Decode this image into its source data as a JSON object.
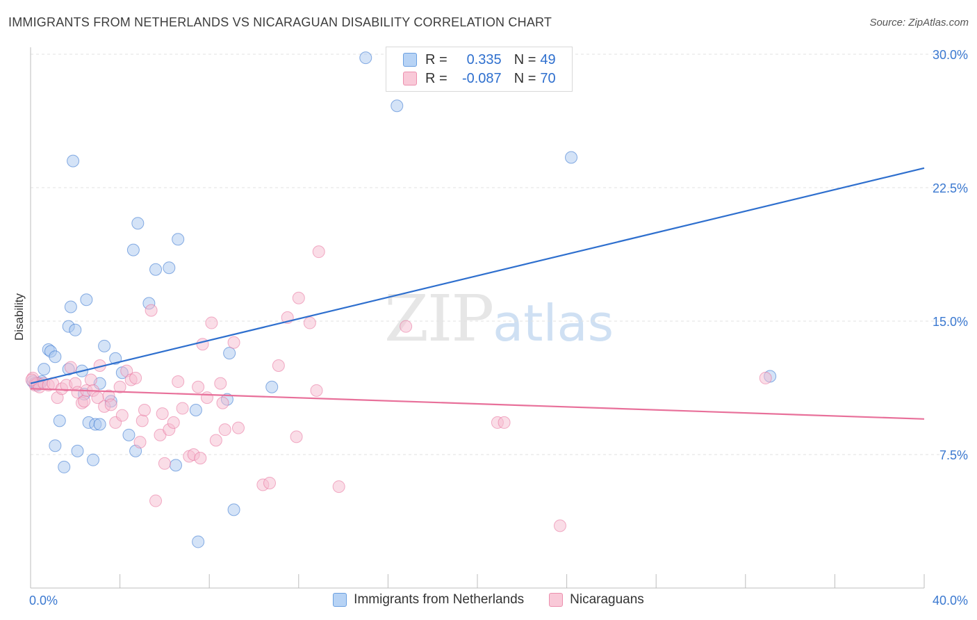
{
  "title": "IMMIGRANTS FROM NETHERLANDS VS NICARAGUAN DISABILITY CORRELATION CHART",
  "source": "Source: ZipAtlas.com",
  "watermark": {
    "zip": "ZIP",
    "atlas": "atlas"
  },
  "legend": {
    "series1": {
      "r_label": "R =",
      "r_value": "0.335",
      "n_label": "N =",
      "n_value": "49"
    },
    "series2": {
      "r_label": "R =",
      "r_value": "-0.087",
      "n_label": "N =",
      "n_value": "70"
    }
  },
  "chart_data": {
    "type": "scatter",
    "title": "IMMIGRANTS FROM NETHERLANDS VS NICARAGUAN DISABILITY CORRELATION CHART",
    "xlabel": "",
    "ylabel": "Disability",
    "xlim": [
      0,
      40
    ],
    "ylim": [
      0,
      31
    ],
    "x_tick_labels": [
      {
        "value": 0,
        "label": "0.0%"
      },
      {
        "value": 40,
        "label": "40.0%"
      }
    ],
    "y_tick_labels": [
      {
        "value": 7.5,
        "label": "7.5%"
      },
      {
        "value": 15,
        "label": "15.0%"
      },
      {
        "value": 22.5,
        "label": "22.5%"
      },
      {
        "value": 30,
        "label": "30.0%"
      }
    ],
    "grid": true,
    "colors": {
      "series1": "#2e6fce",
      "series1_fill": "#a9c8f0",
      "series2": "#e8709a",
      "series2_fill": "#f6bcd0",
      "axis_text": "#3a78d0"
    },
    "series": [
      {
        "name": "Immigrants from Netherlands",
        "trend": {
          "x0": 0,
          "y0": 11.5,
          "x1": 40,
          "y1": 23.6
        },
        "points": [
          [
            0.1,
            11.6
          ],
          [
            0.2,
            11.5
          ],
          [
            0.3,
            11.4
          ],
          [
            0.4,
            11.5
          ],
          [
            0.5,
            11.6
          ],
          [
            0.6,
            12.3
          ],
          [
            0.8,
            13.4
          ],
          [
            0.9,
            13.3
          ],
          [
            1.1,
            13.0
          ],
          [
            1.1,
            8.0
          ],
          [
            1.3,
            9.4
          ],
          [
            1.5,
            6.8
          ],
          [
            1.7,
            12.3
          ],
          [
            1.7,
            14.7
          ],
          [
            1.8,
            15.8
          ],
          [
            1.9,
            24.0
          ],
          [
            2.0,
            14.5
          ],
          [
            2.1,
            7.7
          ],
          [
            2.3,
            12.2
          ],
          [
            2.4,
            10.9
          ],
          [
            2.5,
            16.2
          ],
          [
            2.6,
            9.3
          ],
          [
            2.8,
            7.2
          ],
          [
            2.9,
            9.2
          ],
          [
            3.1,
            9.2
          ],
          [
            3.1,
            11.5
          ],
          [
            3.3,
            13.6
          ],
          [
            3.6,
            10.5
          ],
          [
            3.8,
            12.9
          ],
          [
            4.1,
            12.1
          ],
          [
            4.4,
            8.6
          ],
          [
            4.6,
            19.0
          ],
          [
            4.7,
            7.7
          ],
          [
            4.8,
            20.5
          ],
          [
            5.3,
            16.0
          ],
          [
            5.6,
            17.9
          ],
          [
            6.2,
            18.0
          ],
          [
            6.5,
            6.9
          ],
          [
            6.6,
            19.6
          ],
          [
            7.5,
            2.6
          ],
          [
            7.4,
            10.0
          ],
          [
            8.8,
            10.6
          ],
          [
            8.9,
            13.2
          ],
          [
            9.1,
            4.4
          ],
          [
            10.8,
            11.3
          ],
          [
            15.0,
            29.8
          ],
          [
            16.4,
            27.1
          ],
          [
            24.2,
            24.2
          ],
          [
            33.1,
            11.9
          ]
        ]
      },
      {
        "name": "Nicaraguans",
        "trend": {
          "x0": 0,
          "y0": 11.2,
          "x1": 40,
          "y1": 9.5
        },
        "points": [
          [
            0.1,
            11.8
          ],
          [
            0.2,
            11.4
          ],
          [
            0.3,
            11.5
          ],
          [
            0.4,
            11.3
          ],
          [
            0.6,
            11.5
          ],
          [
            0.8,
            11.4
          ],
          [
            1.0,
            11.5
          ],
          [
            1.2,
            10.7
          ],
          [
            1.4,
            11.2
          ],
          [
            1.6,
            11.4
          ],
          [
            1.8,
            12.4
          ],
          [
            2.0,
            11.5
          ],
          [
            2.1,
            11.0
          ],
          [
            2.3,
            10.4
          ],
          [
            2.4,
            10.5
          ],
          [
            2.5,
            11.1
          ],
          [
            2.7,
            11.7
          ],
          [
            2.8,
            11.1
          ],
          [
            3.0,
            10.7
          ],
          [
            3.1,
            12.5
          ],
          [
            3.3,
            10.2
          ],
          [
            3.5,
            10.8
          ],
          [
            3.6,
            10.3
          ],
          [
            3.8,
            9.3
          ],
          [
            4.0,
            11.3
          ],
          [
            4.1,
            9.7
          ],
          [
            4.3,
            12.2
          ],
          [
            4.5,
            11.7
          ],
          [
            4.7,
            11.8
          ],
          [
            4.9,
            8.2
          ],
          [
            5.0,
            9.4
          ],
          [
            5.1,
            10.0
          ],
          [
            5.4,
            15.6
          ],
          [
            5.6,
            4.9
          ],
          [
            5.8,
            8.6
          ],
          [
            5.9,
            9.8
          ],
          [
            6.0,
            7.0
          ],
          [
            6.2,
            8.9
          ],
          [
            6.4,
            9.3
          ],
          [
            6.6,
            11.6
          ],
          [
            6.8,
            10.1
          ],
          [
            7.1,
            7.4
          ],
          [
            7.3,
            7.5
          ],
          [
            7.5,
            11.3
          ],
          [
            7.6,
            7.3
          ],
          [
            7.7,
            13.7
          ],
          [
            7.9,
            10.7
          ],
          [
            8.1,
            14.9
          ],
          [
            8.3,
            8.3
          ],
          [
            8.5,
            11.5
          ],
          [
            8.6,
            10.4
          ],
          [
            8.7,
            8.9
          ],
          [
            9.1,
            13.8
          ],
          [
            9.3,
            9.0
          ],
          [
            10.4,
            5.8
          ],
          [
            10.7,
            5.9
          ],
          [
            11.1,
            12.5
          ],
          [
            11.5,
            15.2
          ],
          [
            11.9,
            8.5
          ],
          [
            12.0,
            16.3
          ],
          [
            12.5,
            14.9
          ],
          [
            12.8,
            11.1
          ],
          [
            12.9,
            18.9
          ],
          [
            13.8,
            5.7
          ],
          [
            16.8,
            14.7
          ],
          [
            20.9,
            9.3
          ],
          [
            21.2,
            9.3
          ],
          [
            23.7,
            3.5
          ],
          [
            32.9,
            11.8
          ],
          [
            0.05,
            11.7
          ]
        ]
      }
    ]
  }
}
